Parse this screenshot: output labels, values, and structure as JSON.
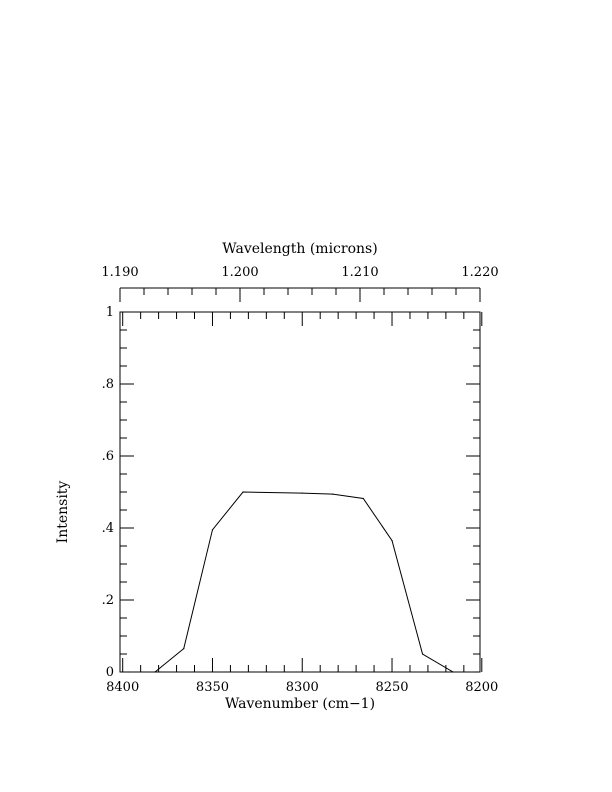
{
  "chart_data": {
    "type": "line",
    "xlabel": "Wavenumber (cm−1)",
    "ylabel": "Intensity",
    "top_axis_label": "Wavelength (microns)",
    "xlim": [
      8400,
      8200
    ],
    "ylim": [
      0,
      1
    ],
    "x_ticks": [
      {
        "value": 8400,
        "label": "8400"
      },
      {
        "value": 8350,
        "label": "8350"
      },
      {
        "value": 8300,
        "label": "8300"
      },
      {
        "value": 8250,
        "label": "8250"
      },
      {
        "value": 8200,
        "label": "8200"
      }
    ],
    "y_ticks": [
      {
        "value": 0,
        "label": "0"
      },
      {
        "value": 0.2,
        "label": ".2"
      },
      {
        "value": 0.4,
        "label": ".4"
      },
      {
        "value": 0.6,
        "label": ".6"
      },
      {
        "value": 0.8,
        "label": ".8"
      },
      {
        "value": 1,
        "label": "1"
      }
    ],
    "top_ticks": [
      {
        "value": 1.19,
        "label": "1.190"
      },
      {
        "value": 1.2,
        "label": "1.200"
      },
      {
        "value": 1.21,
        "label": "1.210"
      },
      {
        "value": 1.22,
        "label": "1.220"
      }
    ],
    "top_lim": [
      1.19,
      1.22
    ],
    "series": [
      {
        "x": [
          8397,
          8382,
          8366,
          8350,
          8333,
          8300,
          8283,
          8266,
          8250,
          8233,
          8216,
          8203
        ],
        "y": [
          0.0,
          0.0,
          0.065,
          0.395,
          0.5,
          0.497,
          0.494,
          0.482,
          0.365,
          0.05,
          0.0,
          0.0
        ]
      }
    ],
    "grid": false,
    "legend": "none"
  }
}
